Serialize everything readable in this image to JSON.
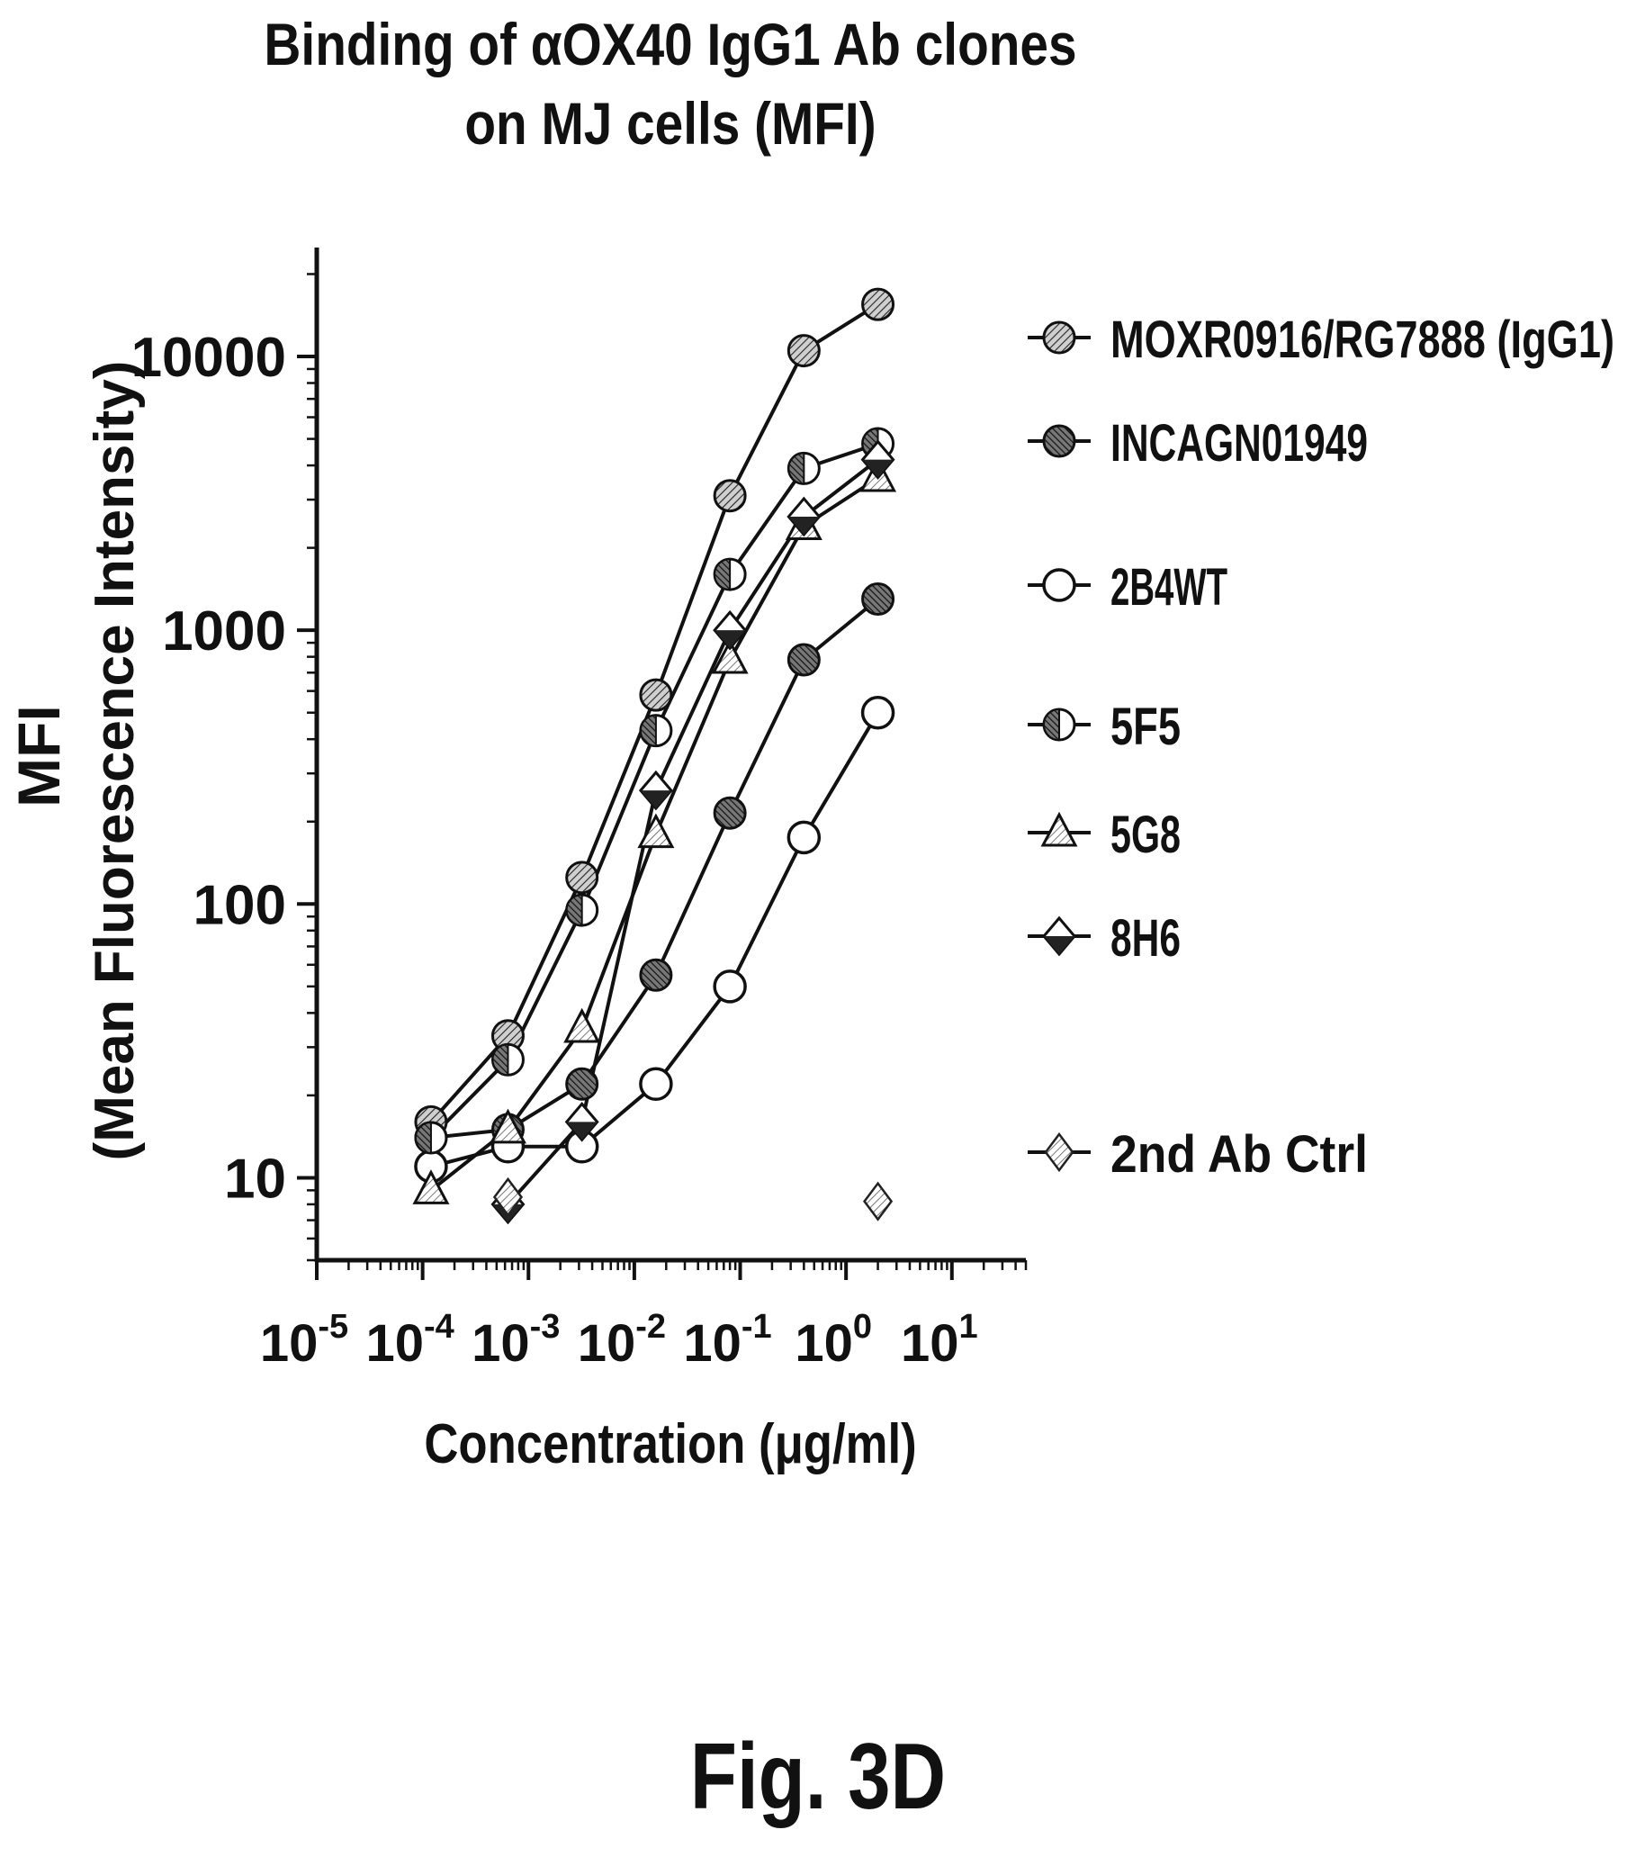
{
  "figure_label": "Fig. 3D",
  "chart_data": {
    "type": "scatter",
    "title": [
      "Binding of αOX40 IgG1 Ab clones",
      "on MJ cells (MFI)"
    ],
    "ylabel": [
      "MFI",
      "(Mean Fluorescence Intensity)"
    ],
    "xlabel": "Concentration (μg/ml)",
    "xscale": "log",
    "yscale": "log",
    "xlim": [
      1e-05,
      50
    ],
    "ylim": [
      5,
      25000
    ],
    "x_ticks": [
      {
        "value": 1e-05,
        "base": "10",
        "exp": "-5"
      },
      {
        "value": 0.0001,
        "base": "10",
        "exp": "-4"
      },
      {
        "value": 0.001,
        "base": "10",
        "exp": "-3"
      },
      {
        "value": 0.01,
        "base": "10",
        "exp": "-2"
      },
      {
        "value": 0.1,
        "base": "10",
        "exp": "-1"
      },
      {
        "value": 1,
        "base": "10",
        "exp": "0"
      },
      {
        "value": 10,
        "base": "10",
        "exp": "1"
      }
    ],
    "y_ticks": [
      {
        "value": 10,
        "label": "10"
      },
      {
        "value": 100,
        "label": "100"
      },
      {
        "value": 1000,
        "label": "1000"
      },
      {
        "value": 10000,
        "label": "10000"
      }
    ],
    "legend_position": "right",
    "series": [
      {
        "name": "MOXR0916/RG7888 (IgG1)",
        "marker": "hatched-circle",
        "line": true,
        "x": [
          0.00012,
          0.00064,
          0.0032,
          0.016,
          0.08,
          0.4,
          2.0
        ],
        "y": [
          16,
          33,
          125,
          580,
          3100,
          10500,
          15500
        ]
      },
      {
        "name": "INCAGN01949",
        "marker": "dark-hatched-circle",
        "line": true,
        "x": [
          0.00012,
          0.00064,
          0.0032,
          0.016,
          0.08,
          0.4,
          2.0
        ],
        "y": [
          14,
          15,
          22,
          55,
          215,
          780,
          1300
        ]
      },
      {
        "name": "2B4WT",
        "marker": "open-circle",
        "line": true,
        "x": [
          0.00012,
          0.00064,
          0.0032,
          0.016,
          0.08,
          0.4,
          2.0
        ],
        "y": [
          11,
          13,
          13,
          22,
          50,
          175,
          500
        ]
      },
      {
        "name": "5F5",
        "marker": "half-circle",
        "line": true,
        "x": [
          0.00012,
          0.00064,
          0.0032,
          0.016,
          0.08,
          0.4,
          2.0
        ],
        "y": [
          14,
          27,
          95,
          430,
          1600,
          3900,
          4800
        ]
      },
      {
        "name": "5G8",
        "marker": "triangle",
        "line": true,
        "x": [
          0.00012,
          0.00064,
          0.0032,
          0.016,
          0.08,
          0.4,
          2.0
        ],
        "y": [
          9,
          15,
          35,
          180,
          780,
          2400,
          3600
        ]
      },
      {
        "name": "8H6",
        "marker": "diamond",
        "line": true,
        "x": [
          0.00064,
          0.0032,
          0.016,
          0.08,
          0.4,
          2.0
        ],
        "y": [
          8,
          16,
          260,
          1000,
          2600,
          4200
        ]
      },
      {
        "name": "2nd Ab Ctrl",
        "marker": "open-diamond",
        "line": false,
        "x": [
          0.00064,
          2.0
        ],
        "y": [
          8.5,
          8.2
        ]
      }
    ]
  }
}
